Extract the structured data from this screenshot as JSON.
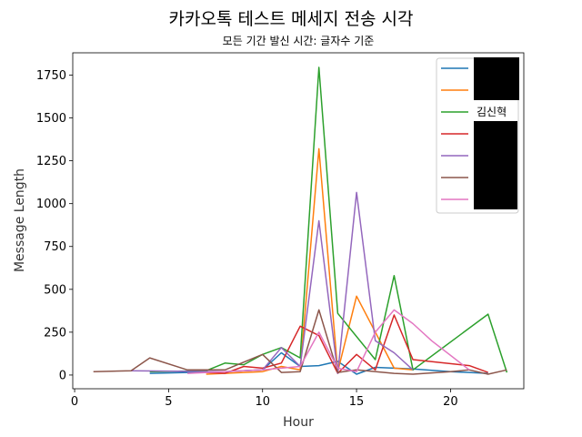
{
  "chart_data": {
    "type": "line",
    "title": "카카오톡 테스트 메세지 전송 시각",
    "subtitle": "모든 기간 발신 시간: 글자수 기준",
    "xlabel": "Hour",
    "ylabel": "Message Length",
    "xlim": [
      -0.1,
      23.9
    ],
    "ylim": [
      -80,
      1880
    ],
    "xticks": [
      0,
      5,
      10,
      15,
      20
    ],
    "yticks": [
      0,
      250,
      500,
      750,
      1000,
      1250,
      1500,
      1750
    ],
    "legend_position": "top-right",
    "series": [
      {
        "name": "",
        "color": "#1f77b4",
        "x": [
          4,
          6,
          8,
          10,
          11,
          12,
          13,
          14,
          15,
          16,
          18,
          20,
          22
        ],
        "y": [
          10,
          15,
          20,
          30,
          130,
          50,
          55,
          80,
          5,
          45,
          35,
          20,
          10
        ]
      },
      {
        "name": "",
        "color": "#ff7f0e",
        "x": [
          7,
          10,
          11,
          12,
          13,
          14,
          15,
          17,
          18
        ],
        "y": [
          5,
          20,
          50,
          30,
          1320,
          20,
          460,
          40,
          30
        ]
      },
      {
        "name": "김신혁",
        "color": "#2ca02c",
        "x": [
          4,
          7,
          8,
          9,
          10,
          11,
          12,
          13,
          14,
          16,
          17,
          18,
          22,
          23
        ],
        "y": [
          20,
          25,
          70,
          60,
          120,
          160,
          100,
          1795,
          360,
          90,
          580,
          30,
          355,
          15
        ]
      },
      {
        "name": "",
        "color": "#d62728",
        "x": [
          7,
          8,
          9,
          10,
          11,
          12,
          13,
          14,
          15,
          16,
          17,
          18,
          21,
          22
        ],
        "y": [
          15,
          10,
          50,
          40,
          70,
          285,
          230,
          10,
          120,
          30,
          350,
          90,
          55,
          15
        ]
      },
      {
        "name": "",
        "color": "#9467bd",
        "x": [
          3,
          8,
          10,
          11,
          12,
          13,
          14,
          15,
          16,
          17,
          18
        ],
        "y": [
          25,
          20,
          30,
          160,
          50,
          900,
          10,
          1065,
          200,
          130,
          30
        ]
      },
      {
        "name": "",
        "color": "#8c564b",
        "x": [
          1,
          3,
          4,
          6,
          8,
          10,
          11,
          12,
          13,
          14,
          15,
          17,
          18,
          20,
          21,
          22,
          23
        ],
        "y": [
          20,
          25,
          100,
          30,
          30,
          120,
          15,
          20,
          380,
          15,
          30,
          10,
          5,
          20,
          30,
          5,
          30
        ]
      },
      {
        "name": "",
        "color": "#e377c2",
        "x": [
          6,
          8,
          10,
          11,
          12,
          13,
          14,
          15,
          16,
          17,
          18,
          19,
          21
        ],
        "y": [
          10,
          20,
          30,
          40,
          50,
          250,
          40,
          20,
          250,
          380,
          300,
          200,
          30
        ]
      }
    ]
  }
}
